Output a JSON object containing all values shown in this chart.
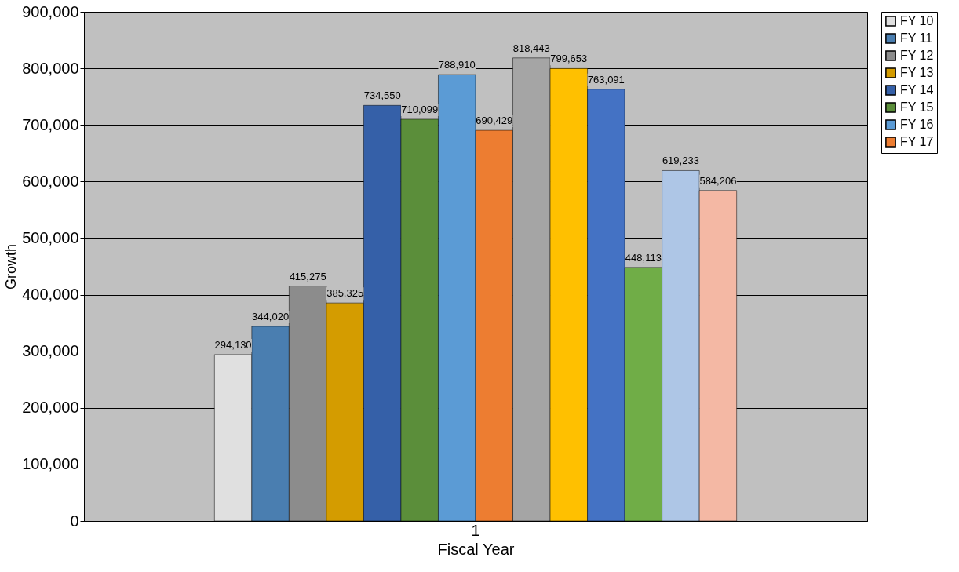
{
  "chart_data": {
    "type": "bar",
    "xlabel": "Fiscal Year",
    "ylabel": "Growth",
    "categories": [
      "1"
    ],
    "series": [
      {
        "name": "FY 10",
        "color": "#e0e0e0",
        "values": [
          294130
        ],
        "value_labels": [
          "294,130"
        ]
      },
      {
        "name": "FY 11",
        "color": "#4a7eb0",
        "values": [
          344020
        ],
        "value_labels": [
          "344,020"
        ]
      },
      {
        "name": "FY 12",
        "color": "#8c8c8c",
        "values": [
          415275
        ],
        "value_labels": [
          "415,275"
        ]
      },
      {
        "name": "FY 13",
        "color": "#d49c00",
        "values": [
          385325
        ],
        "value_labels": [
          "385,325"
        ]
      },
      {
        "name": "FY 14",
        "color": "#3560a8",
        "values": [
          734550
        ],
        "value_labels": [
          "734,550"
        ]
      },
      {
        "name": "FY 15",
        "color": "#5b8e3a",
        "values": [
          710099
        ],
        "value_labels": [
          "710,099"
        ]
      },
      {
        "name": "FY 16",
        "color": "#5b9bd5",
        "values": [
          788910
        ],
        "value_labels": [
          "788,910"
        ]
      },
      {
        "name": "FY 17",
        "color": "#ed7d31",
        "values": [
          690429
        ],
        "value_labels": [
          "690,429"
        ]
      },
      {
        "color": "#a5a5a5",
        "values": [
          818443
        ],
        "value_labels": [
          "818,443"
        ]
      },
      {
        "color": "#ffc000",
        "values": [
          799653
        ],
        "value_labels": [
          "799,653"
        ]
      },
      {
        "color": "#4472c4",
        "values": [
          763091
        ],
        "value_labels": [
          "763,091"
        ]
      },
      {
        "color": "#70ad47",
        "values": [
          448113
        ],
        "value_labels": [
          "448,113"
        ]
      },
      {
        "color": "#aec6e6",
        "values": [
          619233
        ],
        "value_labels": [
          "619,233"
        ]
      },
      {
        "color": "#f4b8a4",
        "values": [
          584206
        ],
        "value_labels": [
          "584,206"
        ]
      }
    ],
    "ylim": [
      0,
      900000
    ],
    "yticks": [
      {
        "value": 0,
        "label": "0"
      },
      {
        "value": 100000,
        "label": "100,000"
      },
      {
        "value": 200000,
        "label": "200,000"
      },
      {
        "value": 300000,
        "label": "300,000"
      },
      {
        "value": 400000,
        "label": "400,000"
      },
      {
        "value": 500000,
        "label": "500,000"
      },
      {
        "value": 600000,
        "label": "600,000"
      },
      {
        "value": 700000,
        "label": "700,000"
      },
      {
        "value": 800000,
        "label": "800,000"
      },
      {
        "value": 900000,
        "label": "900,000"
      }
    ],
    "grid": "y",
    "legend": "right"
  }
}
